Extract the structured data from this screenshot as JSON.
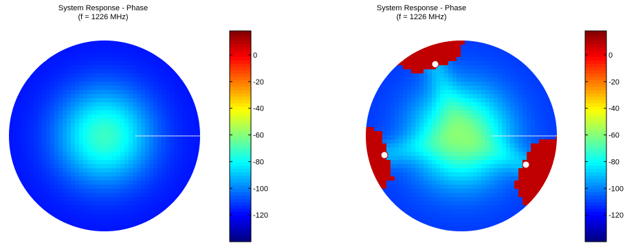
{
  "chart_data": [
    {
      "type": "heatmap",
      "title": "System Response - Phase",
      "subtitle": "(f = 1226 MHz)",
      "colormap": "jet",
      "colorbar": {
        "ticks": [
          0,
          -20,
          -40,
          -60,
          -80,
          -100,
          -120
        ],
        "range": [
          -140,
          18
        ]
      },
      "field": {
        "center_value": -72,
        "edge_value": -118
      },
      "markers": []
    },
    {
      "type": "heatmap",
      "title": "System Response - Phase",
      "subtitle": "(f = 1226 MHz)",
      "colormap": "jet",
      "colorbar": {
        "ticks": [
          0,
          -20,
          -40,
          -60,
          -80,
          -100,
          -120
        ],
        "range": [
          -140,
          18
        ]
      },
      "field": {
        "center_value": -60,
        "edge_value": -112
      },
      "markers": [
        {
          "azimuth_deg": 110,
          "radius_frac": 0.8,
          "peak_value": 8
        },
        {
          "azimuth_deg": 194,
          "radius_frac": 0.83,
          "peak_value": 8
        },
        {
          "azimuth_deg": 336,
          "radius_frac": 0.74,
          "peak_value": 8
        }
      ]
    }
  ]
}
